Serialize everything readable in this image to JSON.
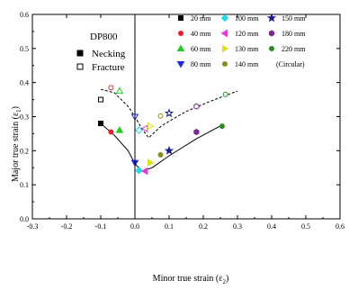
{
  "chart_data": {
    "type": "scatter",
    "title": "",
    "material": "DP800",
    "xlabel": "Minor true strain (ε",
    "xlabel_sub": "2",
    "ylabel": "Major true strain (ε",
    "ylabel_sub": "1",
    "xlim": [
      -0.3,
      0.6
    ],
    "ylim": [
      0.0,
      0.6
    ],
    "xticks": [
      "-0.3",
      "-0.2",
      "-0.1",
      "0.0",
      "0.1",
      "0.2",
      "0.3",
      "0.4",
      "0.5",
      "0.6"
    ],
    "yticks": [
      "0.0",
      "0.1",
      "0.2",
      "0.3",
      "0.4",
      "0.5",
      "0.6"
    ],
    "xtick_values": [
      -0.3,
      -0.2,
      -0.1,
      0.0,
      0.1,
      0.2,
      0.3,
      0.4,
      0.5,
      0.6
    ],
    "ytick_values": [
      0.0,
      0.1,
      0.2,
      0.3,
      0.4,
      0.5,
      0.6
    ],
    "grid": false,
    "legend_position": "top-right",
    "mode_legend": [
      {
        "label": "Necking",
        "marker": "filled-square"
      },
      {
        "label": "Fracture",
        "marker": "open-square"
      }
    ],
    "series": [
      {
        "name": "20 mm",
        "color": "#000000",
        "marker": "square",
        "necking": [
          -0.1,
          0.28
        ],
        "fracture": [
          -0.1,
          0.35
        ]
      },
      {
        "name": "40 mm",
        "color": "#e8202a",
        "marker": "circle",
        "necking": [
          -0.07,
          0.255
        ],
        "fracture": [
          -0.07,
          0.385
        ]
      },
      {
        "name": "60 mm",
        "color": "#22cc22",
        "marker": "triangle-up",
        "necking": [
          -0.045,
          0.26
        ],
        "fracture": [
          -0.045,
          0.375
        ]
      },
      {
        "name": "80 mm",
        "color": "#1f2adf",
        "marker": "triangle-down",
        "necking": [
          0.0,
          0.165
        ],
        "fracture": [
          0.0,
          0.3
        ]
      },
      {
        "name": "100 mm",
        "color": "#22d8e6",
        "marker": "diamond",
        "necking": [
          0.012,
          0.142
        ],
        "fracture": [
          0.012,
          0.26
        ]
      },
      {
        "name": "120 mm",
        "color": "#e23ad8",
        "marker": "triangle-left",
        "necking": [
          0.03,
          0.14
        ],
        "fracture": [
          0.03,
          0.265
        ]
      },
      {
        "name": "130 mm",
        "color": "#e0e020",
        "marker": "triangle-right",
        "necking": [
          0.045,
          0.165
        ],
        "fracture": [
          0.045,
          0.272
        ]
      },
      {
        "name": "140 mm",
        "color": "#8a8a28",
        "marker": "circle",
        "necking": [
          0.075,
          0.188
        ],
        "fracture": [
          0.075,
          0.302
        ]
      },
      {
        "name": "150 mm",
        "color": "#1a1a8c",
        "marker": "star",
        "necking": [
          0.1,
          0.2
        ],
        "fracture": [
          0.1,
          0.31
        ]
      },
      {
        "name": "180 mm",
        "color": "#7b2a8f",
        "marker": "hexagon",
        "necking": [
          0.18,
          0.255
        ],
        "fracture": [
          0.18,
          0.33
        ]
      },
      {
        "name": "220 mm",
        "color": "#2a8a2a",
        "marker": "circle",
        "necking": [
          0.255,
          0.272
        ],
        "fracture": [
          0.265,
          0.365
        ]
      },
      {
        "name": "(Circular)",
        "color": "#000000",
        "marker": "none"
      }
    ],
    "necking_curve": [
      [
        -0.1,
        0.28
      ],
      [
        -0.06,
        0.245
      ],
      [
        -0.02,
        0.2
      ],
      [
        0.0,
        0.162
      ],
      [
        0.02,
        0.14
      ],
      [
        0.05,
        0.15
      ],
      [
        0.1,
        0.185
      ],
      [
        0.18,
        0.235
      ],
      [
        0.26,
        0.278
      ]
    ],
    "fracture_curve": [
      [
        -0.1,
        0.38
      ],
      [
        -0.06,
        0.37
      ],
      [
        -0.02,
        0.33
      ],
      [
        0.0,
        0.3
      ],
      [
        0.02,
        0.265
      ],
      [
        0.04,
        0.238
      ],
      [
        0.08,
        0.275
      ],
      [
        0.15,
        0.315
      ],
      [
        0.22,
        0.345
      ],
      [
        0.3,
        0.375
      ]
    ]
  }
}
